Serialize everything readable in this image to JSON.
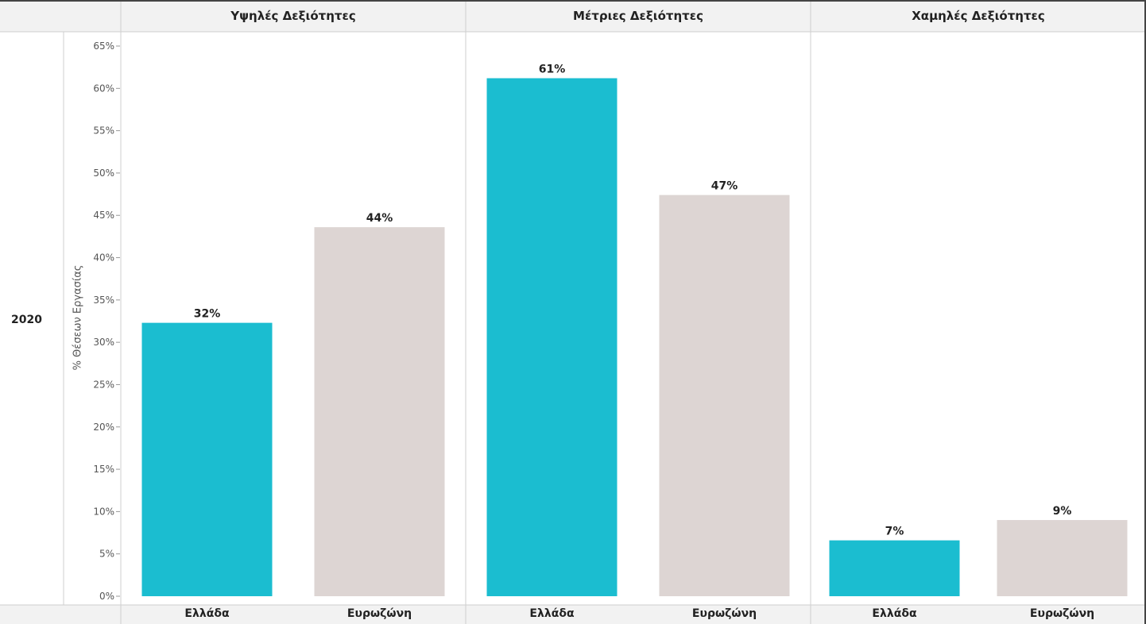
{
  "chart_data": {
    "type": "bar",
    "row_label": "2020",
    "ylabel": "% Θέσεων Εργασίας",
    "ylim": [
      0,
      65
    ],
    "yticks": [
      "0%",
      "5%",
      "10%",
      "15%",
      "20%",
      "25%",
      "30%",
      "35%",
      "40%",
      "45%",
      "50%",
      "55%",
      "60%",
      "65%"
    ],
    "panels": [
      {
        "title": "Υψηλές Δεξιότητες",
        "categories": [
          "Ελλάδα",
          "Ευρωζώνη"
        ],
        "values": [
          32.3,
          43.6
        ],
        "labels": [
          "32%",
          "44%"
        ]
      },
      {
        "title": "Μέτριες Δεξιότητες",
        "categories": [
          "Ελλάδα",
          "Ευρωζώνη"
        ],
        "values": [
          61.2,
          47.4
        ],
        "labels": [
          "61%",
          "47%"
        ]
      },
      {
        "title": "Χαμηλές Δεξιότητες",
        "categories": [
          "Ελλάδα",
          "Ευρωζώνη"
        ],
        "values": [
          6.6,
          9.0
        ],
        "labels": [
          "7%",
          "9%"
        ]
      }
    ],
    "colors": {
      "Ελλάδα": "#1bbdd0",
      "Ευρωζώνη": "#ddd5d3"
    },
    "grid": false
  }
}
